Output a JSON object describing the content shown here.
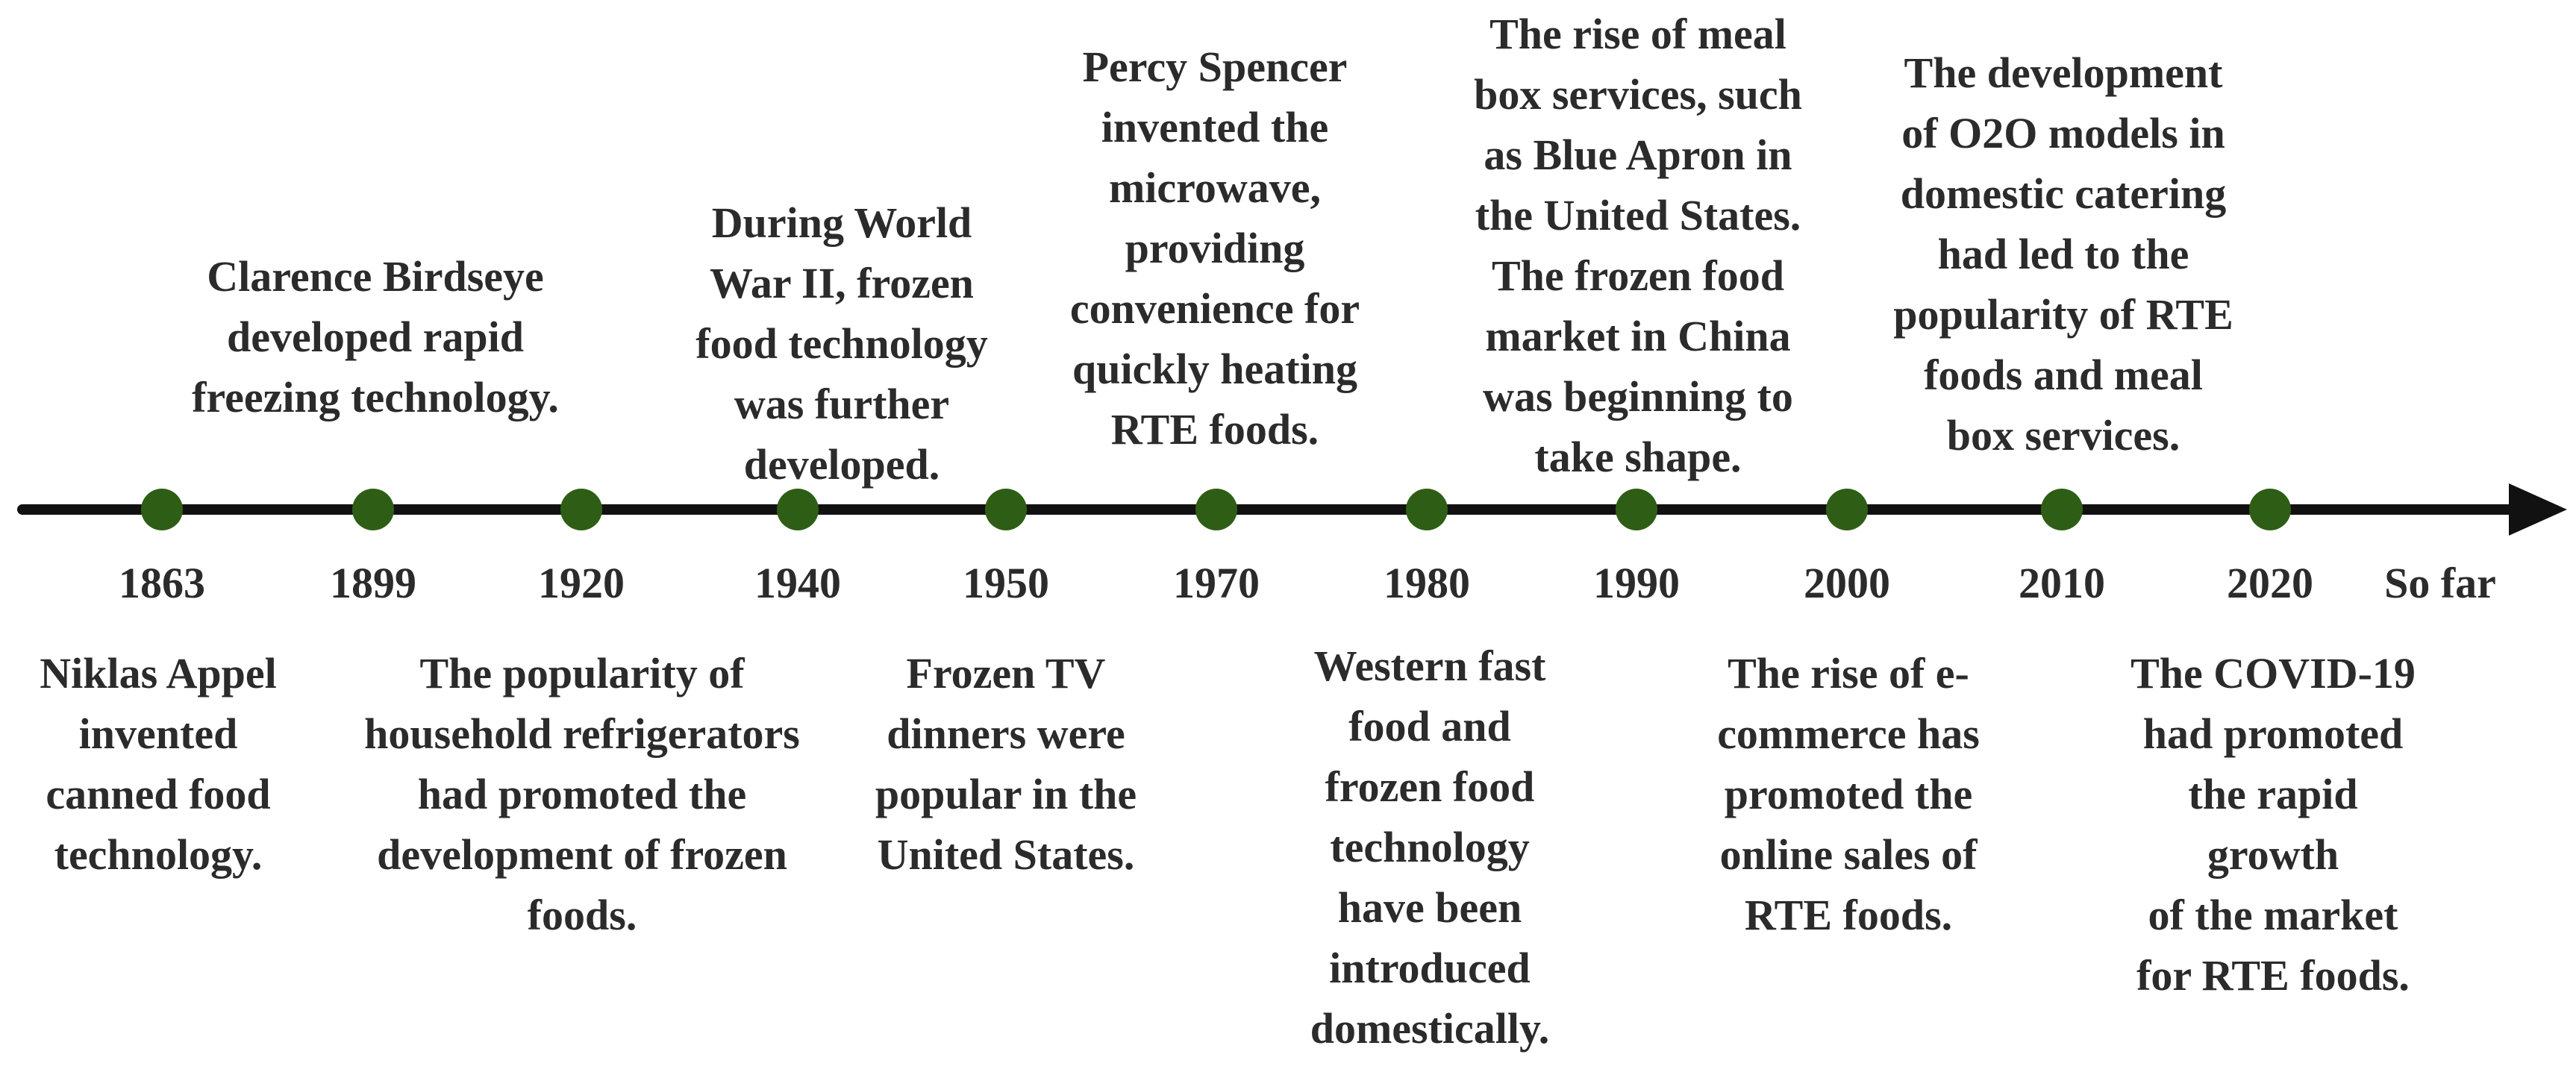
{
  "timeline": {
    "marker_color": "#2e5e15",
    "axis_color": "#111111",
    "years": [
      "1863",
      "1899",
      "1920",
      "1940",
      "1950",
      "1970",
      "1980",
      "1990",
      "2000",
      "2010",
      "2020"
    ],
    "end_label": "So far",
    "events_above": [
      {
        "year": "1899",
        "text": "Clarence Birdseye\ndeveloped rapid\nfreezing technology."
      },
      {
        "year": "1940",
        "text": "During World\nWar II, frozen\nfood technology\nwas further\ndeveloped."
      },
      {
        "year": "1970",
        "text": "Percy Spencer\ninvented the\nmicrowave,\nproviding\nconvenience for\nquickly heating\nRTE foods."
      },
      {
        "year": "1990",
        "text": "The rise of meal\nbox services, such\nas Blue Apron in\nthe United States.\nThe frozen food\nmarket in China\nwas beginning to\ntake shape."
      },
      {
        "year": "2010",
        "text": "The development\nof O2O models in\ndomestic catering\nhad led to the\npopularity of RTE\nfoods and meal\nbox services."
      }
    ],
    "events_below": [
      {
        "year": "1863",
        "text": "Niklas Appel\ninvented\ncanned food\ntechnology."
      },
      {
        "year": "1920",
        "text": "The popularity of\nhousehold refrigerators\nhad promoted the\ndevelopment of frozen\nfoods."
      },
      {
        "year": "1950",
        "text": "Frozen TV\ndinners were\npopular in the\nUnited States."
      },
      {
        "year": "1980",
        "text": "Western fast\nfood and\nfrozen food\ntechnology\nhave been\nintroduced\ndomestically."
      },
      {
        "year": "2000",
        "text": "The rise of e-\ncommerce has\npromoted the\nonline sales of\nRTE foods."
      },
      {
        "year": "2020",
        "text": "The COVID-19\nhad promoted\nthe rapid growth\nof the market\nfor RTE foods."
      }
    ]
  }
}
